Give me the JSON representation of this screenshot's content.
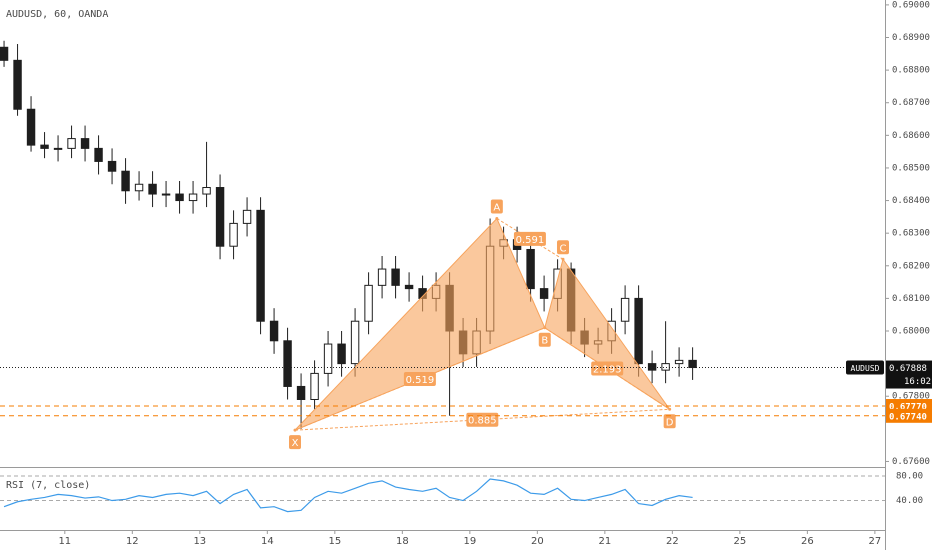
{
  "chart_data": {
    "type": "candlestick",
    "title": "AUDUSD, 60, OANDA",
    "up_color": "#ffffff",
    "down_color": "#1e1e1e",
    "x": [
      0.1,
      0.3,
      0.5,
      0.7,
      0.9,
      1.1,
      1.3,
      1.5,
      1.7,
      1.9,
      2.1,
      2.3,
      2.5,
      2.7,
      2.9,
      3.1,
      3.3,
      3.5,
      3.7,
      3.9,
      4.1,
      4.3,
      4.5,
      4.7,
      4.9,
      5.1,
      5.3,
      5.5,
      5.7,
      5.9,
      6.1,
      6.3,
      6.5,
      6.7,
      6.9,
      7.1,
      7.3,
      7.5,
      7.7,
      7.9,
      8.1,
      8.3,
      8.5,
      8.7,
      8.9,
      9.1,
      9.3,
      9.5,
      9.7,
      9.9,
      10.1,
      10.3
    ],
    "open": [
      0.6887,
      0.6883,
      0.6868,
      0.6857,
      0.6856,
      0.6856,
      0.6859,
      0.6856,
      0.6852,
      0.6849,
      0.6843,
      0.6845,
      0.6842,
      0.6842,
      0.684,
      0.6842,
      0.6844,
      0.6826,
      0.6833,
      0.6837,
      0.6803,
      0.6797,
      0.6783,
      0.6779,
      0.6787,
      0.6796,
      0.679,
      0.6803,
      0.6814,
      0.6819,
      0.6814,
      0.6813,
      0.681,
      0.6814,
      0.68,
      0.6793,
      0.68,
      0.6826,
      0.6828,
      0.6825,
      0.6813,
      0.681,
      0.6819,
      0.68,
      0.6796,
      0.6797,
      0.6803,
      0.681,
      0.679,
      0.6788,
      0.679,
      0.6791
    ],
    "high": [
      0.6889,
      0.6888,
      0.6872,
      0.6861,
      0.686,
      0.6863,
      0.6863,
      0.686,
      0.6856,
      0.6853,
      0.6849,
      0.6849,
      0.6846,
      0.6846,
      0.6846,
      0.6858,
      0.6848,
      0.6837,
      0.6841,
      0.6841,
      0.6807,
      0.6801,
      0.6787,
      0.6791,
      0.68,
      0.68,
      0.6807,
      0.6818,
      0.6823,
      0.6823,
      0.6818,
      0.6817,
      0.6818,
      0.6818,
      0.6804,
      0.6804,
      0.68345,
      0.6832,
      0.6832,
      0.6829,
      0.6817,
      0.6822,
      0.6821,
      0.6804,
      0.6801,
      0.6807,
      0.6814,
      0.6814,
      0.6794,
      0.6803,
      0.6795,
      0.6795
    ],
    "low": [
      0.6881,
      0.6866,
      0.6855,
      0.6853,
      0.6852,
      0.6853,
      0.6852,
      0.6848,
      0.6845,
      0.6839,
      0.684,
      0.6838,
      0.6838,
      0.6836,
      0.6836,
      0.6838,
      0.6822,
      0.6822,
      0.6829,
      0.6799,
      0.6793,
      0.6779,
      0.677,
      0.6776,
      0.6783,
      0.6786,
      0.6786,
      0.6799,
      0.681,
      0.681,
      0.6809,
      0.6806,
      0.6806,
      0.6774,
      0.6789,
      0.6789,
      0.6796,
      0.6822,
      0.6821,
      0.6809,
      0.6806,
      0.6806,
      0.6796,
      0.6792,
      0.6793,
      0.6793,
      0.6799,
      0.6786,
      0.6784,
      0.6784,
      0.6786,
      0.6785
    ],
    "close": [
      0.6883,
      0.6868,
      0.6857,
      0.6856,
      0.6856,
      0.6859,
      0.6856,
      0.6852,
      0.6849,
      0.6843,
      0.6845,
      0.6842,
      0.6842,
      0.684,
      0.6842,
      0.6844,
      0.6826,
      0.6833,
      0.6837,
      0.6803,
      0.6797,
      0.6783,
      0.6779,
      0.6787,
      0.6796,
      0.679,
      0.6803,
      0.6814,
      0.6819,
      0.6814,
      0.6813,
      0.681,
      0.6814,
      0.68,
      0.6793,
      0.68,
      0.6826,
      0.6828,
      0.6825,
      0.6813,
      0.681,
      0.6819,
      0.68,
      0.6796,
      0.6797,
      0.6803,
      0.681,
      0.679,
      0.6788,
      0.679,
      0.6791,
      0.67888
    ],
    "xlim": [
      0.04,
      13.15
    ],
    "xticks": [
      {
        "value": 1,
        "label": "11"
      },
      {
        "value": 2,
        "label": "12"
      },
      {
        "value": 3,
        "label": "13"
      },
      {
        "value": 4,
        "label": "14"
      },
      {
        "value": 5,
        "label": "15"
      },
      {
        "value": 6,
        "label": "18"
      },
      {
        "value": 7,
        "label": "19"
      },
      {
        "value": 8,
        "label": "20"
      },
      {
        "value": 9,
        "label": "21"
      },
      {
        "value": 10,
        "label": "22"
      },
      {
        "value": 11,
        "label": "25"
      },
      {
        "value": 12,
        "label": "26"
      },
      {
        "value": 13,
        "label": "27"
      }
    ],
    "ylim": [
      0.67583,
      0.69015
    ],
    "yticks": [
      {
        "value": 0.676,
        "label": "0.67600"
      },
      {
        "value": 0.678,
        "label": "0.67800"
      },
      {
        "value": 0.68,
        "label": "0.68000"
      },
      {
        "value": 0.681,
        "label": "0.68100"
      },
      {
        "value": 0.682,
        "label": "0.68200"
      },
      {
        "value": 0.683,
        "label": "0.68300"
      },
      {
        "value": 0.684,
        "label": "0.68400"
      },
      {
        "value": 0.685,
        "label": "0.68500"
      },
      {
        "value": 0.686,
        "label": "0.68600"
      },
      {
        "value": 0.687,
        "label": "0.68700"
      },
      {
        "value": 0.688,
        "label": "0.68800"
      },
      {
        "value": 0.689,
        "label": "0.68900"
      },
      {
        "value": 0.69,
        "label": "0.69000"
      }
    ],
    "pattern": {
      "color": "#f7a35c",
      "points": [
        {
          "label": "X",
          "x": 4.41,
          "y": 0.67696
        },
        {
          "label": "A",
          "x": 7.4,
          "y": 0.68345
        },
        {
          "label": "B",
          "x": 8.11,
          "y": 0.6801
        },
        {
          "label": "C",
          "x": 8.38,
          "y": 0.6822
        },
        {
          "label": "D",
          "x": 9.96,
          "y": 0.6776
        }
      ],
      "ratios": [
        {
          "label": "0.519",
          "between": [
            "X",
            "B"
          ]
        },
        {
          "label": "0.591",
          "between": [
            "A",
            "C"
          ]
        },
        {
          "label": "2.193",
          "between": [
            "B",
            "D"
          ]
        },
        {
          "label": "0.885",
          "between": [
            "X",
            "D"
          ]
        }
      ]
    },
    "levels": [
      {
        "value": 0.6777,
        "label": "0.67770"
      },
      {
        "value": 0.6774,
        "label": "0.67740"
      }
    ],
    "last_price": {
      "value": 0.67888,
      "label": "0.67888",
      "symbol": "AUDUSD",
      "countdown": "16:02"
    },
    "rsi": {
      "title": "RSI (7, close)",
      "color": "#3d9be9",
      "values": [
        30,
        38,
        42,
        45,
        50,
        48,
        44,
        46,
        40,
        42,
        48,
        45,
        50,
        52,
        48,
        55,
        35,
        50,
        58,
        28,
        30,
        22,
        24,
        45,
        55,
        52,
        60,
        68,
        72,
        62,
        58,
        55,
        60,
        45,
        40,
        55,
        75,
        72,
        65,
        52,
        50,
        60,
        42,
        40,
        45,
        50,
        58,
        35,
        32,
        42,
        48,
        45
      ],
      "ylim": [
        -8,
        93
      ],
      "yticks": [
        {
          "value": 80,
          "label": "80.00"
        },
        {
          "value": 40,
          "label": "40.00"
        }
      ]
    }
  }
}
